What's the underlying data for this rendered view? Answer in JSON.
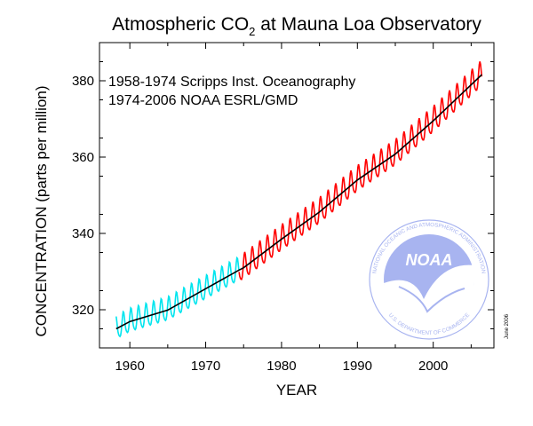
{
  "chart_data": {
    "type": "line",
    "title_main": "Atmospheric CO",
    "title_sub": "2",
    "title_rest": " at Mauna Loa Observatory",
    "xlabel": "YEAR",
    "ylabel": "CONCENTRATION (parts per million)",
    "xlim": [
      1956,
      2008
    ],
    "ylim": [
      310,
      390
    ],
    "xticks": [
      1960,
      1970,
      1980,
      1990,
      2000
    ],
    "yticks": [
      320,
      340,
      360,
      380
    ],
    "grid": false,
    "legend_position": "top-left",
    "legend_lines": [
      "1958-1974 Scripps Inst. Oceanography",
      "1974-2006 NOAA ESRL/GMD"
    ],
    "side_note": "June 2006",
    "logo_text_center": "NOAA",
    "logo_ring_top": "NATIONAL OCEANIC AND ATMOSPHERIC ADMINISTRATION",
    "logo_ring_bottom": "U.S. DEPARTMENT OF COMMERCE",
    "colors": {
      "scripps": "#00e5ee",
      "noaa": "#ff0000",
      "trend": "#000000",
      "logo": "#a8b4f0"
    },
    "series": [
      {
        "name": "",
        "color": "#00e5ee",
        "x_start": 1958.2,
        "x_end": 1974.4,
        "model": "monthly_seasonal",
        "seasonal_amplitude": 3.0,
        "trend_points": [
          [
            1958.2,
            315.0
          ],
          [
            1960,
            316.9
          ],
          [
            1965,
            319.9
          ],
          [
            1970,
            325.5
          ],
          [
            1974.4,
            330.4
          ]
        ]
      },
      {
        "name": "",
        "color": "#ff0000",
        "x_start": 1974.4,
        "x_end": 2006.4,
        "model": "monthly_seasonal",
        "seasonal_amplitude": 3.3,
        "trend_points": [
          [
            1974.4,
            330.4
          ],
          [
            1975,
            331.0
          ],
          [
            1980,
            338.5
          ],
          [
            1985,
            345.6
          ],
          [
            1990,
            354.0
          ],
          [
            1995,
            360.8
          ],
          [
            2000,
            369.5
          ],
          [
            2006.4,
            381.6
          ]
        ]
      },
      {
        "name": "",
        "color": "#000000",
        "model": "trend",
        "points": [
          [
            1958.2,
            315.0
          ],
          [
            1960,
            316.9
          ],
          [
            1965,
            319.9
          ],
          [
            1970,
            325.5
          ],
          [
            1974.4,
            330.4
          ],
          [
            1975,
            331.0
          ],
          [
            1980,
            338.5
          ],
          [
            1985,
            345.6
          ],
          [
            1990,
            354.0
          ],
          [
            1995,
            360.8
          ],
          [
            2000,
            369.5
          ],
          [
            2006.4,
            381.6
          ]
        ]
      }
    ]
  }
}
